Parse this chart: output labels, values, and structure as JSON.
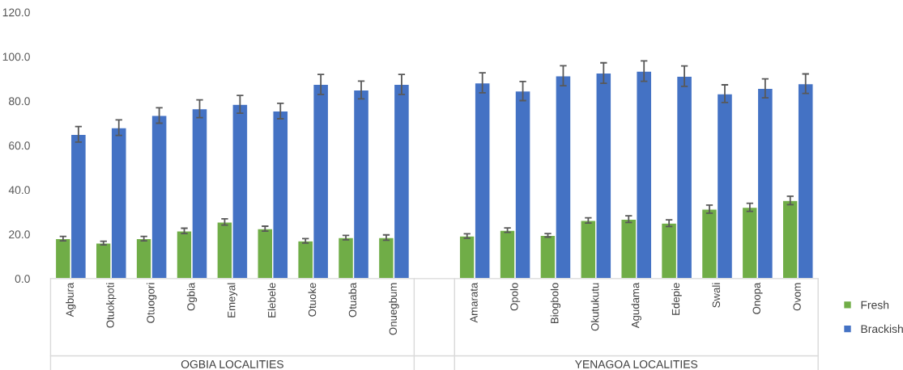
{
  "chart_data": {
    "type": "bar",
    "categories": [
      "Agbura",
      "Otuokpoti",
      "Otuogori",
      "Ogbia",
      "Emeyal",
      "Elebele",
      "Otuoke",
      "Otuaba",
      "Onuegbum",
      null,
      "Amarata",
      "Opolo",
      "Biogbolo",
      "Okutukutu",
      "Agudama",
      "Edepie",
      "Swali",
      "Onopa",
      "Ovom"
    ],
    "series": [
      {
        "name": "Fresh",
        "color": "#70ad47",
        "values": [
          18,
          16,
          18,
          21.5,
          25.5,
          22.5,
          17,
          18.5,
          18.5,
          null,
          19.2,
          21.8,
          19.5,
          26.2,
          26.8,
          25,
          31.3,
          32.1,
          35.2
        ],
        "errors": [
          1,
          0.8,
          1,
          1.2,
          1.4,
          1.1,
          1,
          1,
          1.2,
          null,
          1,
          1,
          0.8,
          1.2,
          1.5,
          1.5,
          1.8,
          1.8,
          1.9
        ]
      },
      {
        "name": "Brackish",
        "color": "#4472c4",
        "values": [
          65,
          68,
          73.5,
          76.5,
          78.5,
          75.5,
          87.5,
          85,
          87.5,
          null,
          88.2,
          84.5,
          91.4,
          92.6,
          93.5,
          91.2,
          83.3,
          85.7,
          87.8
        ],
        "errors": [
          3.5,
          3.5,
          3.5,
          4,
          4,
          3.5,
          4.5,
          4,
          4.5,
          null,
          4.5,
          4.3,
          4.5,
          4.6,
          4.6,
          4.6,
          4,
          4.3,
          4.4
        ]
      }
    ],
    "ylim": [
      0,
      120
    ],
    "yticks": [
      {
        "value": 0,
        "label": "0.0"
      },
      {
        "value": 20,
        "label": "20.0"
      },
      {
        "value": 40,
        "label": "40.0"
      },
      {
        "value": 60,
        "label": "60.0"
      },
      {
        "value": 80,
        "label": "80.0"
      },
      {
        "value": 100,
        "label": "100.0"
      },
      {
        "value": 120,
        "label": "120.0"
      }
    ],
    "annotations": [
      "OGBIA LOCALITIES",
      "YENAGOA LOCALITIES"
    ],
    "grid": false,
    "legend": "right"
  }
}
